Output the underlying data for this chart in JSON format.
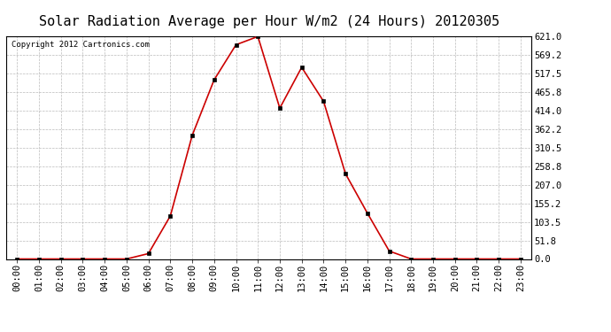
{
  "title": "Solar Radiation Average per Hour W/m2 (24 Hours) 20120305",
  "copyright_text": "Copyright 2012 Cartronics.com",
  "hours": [
    "00:00",
    "01:00",
    "02:00",
    "03:00",
    "04:00",
    "05:00",
    "06:00",
    "07:00",
    "08:00",
    "09:00",
    "10:00",
    "11:00",
    "12:00",
    "13:00",
    "14:00",
    "15:00",
    "16:00",
    "17:00",
    "18:00",
    "19:00",
    "20:00",
    "21:00",
    "22:00",
    "23:00"
  ],
  "values": [
    0,
    0,
    0,
    0,
    0,
    0,
    15,
    120,
    345,
    500,
    598,
    621,
    421,
    535,
    440,
    238,
    128,
    22,
    0,
    0,
    0,
    0,
    0,
    0
  ],
  "line_color": "#cc0000",
  "marker_color": "#000000",
  "background_color": "#ffffff",
  "grid_color": "#bbbbbb",
  "ylim": [
    0,
    621.0
  ],
  "yticks": [
    0.0,
    51.8,
    103.5,
    155.2,
    207.0,
    258.8,
    310.5,
    362.2,
    414.0,
    465.8,
    517.5,
    569.2,
    621.0
  ],
  "ytick_labels": [
    "0.0",
    "51.8",
    "103.5",
    "155.2",
    "207.0",
    "258.8",
    "310.5",
    "362.2",
    "414.0",
    "465.8",
    "517.5",
    "569.2",
    "621.0"
  ],
  "title_fontsize": 11,
  "copyright_fontsize": 6.5,
  "tick_fontsize": 7.5
}
